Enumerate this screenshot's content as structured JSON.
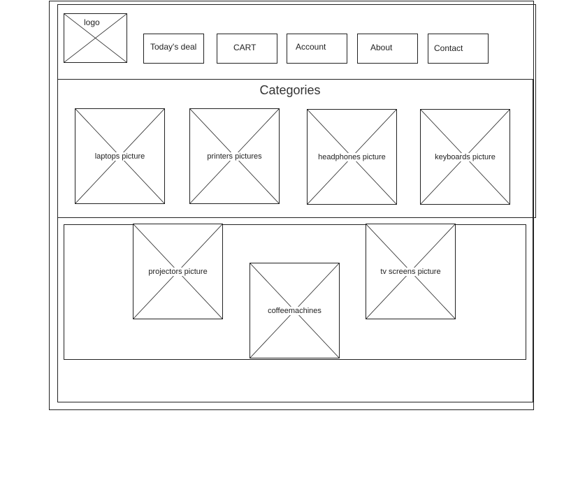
{
  "header": {
    "logo_label": "logo",
    "nav": [
      {
        "label": "Today's deal"
      },
      {
        "label": "CART"
      },
      {
        "label": "Account"
      },
      {
        "label": "About"
      },
      {
        "label": "Contact"
      }
    ]
  },
  "categories": {
    "title": "Categories",
    "items": [
      {
        "label": "laptops picture"
      },
      {
        "label": "printers pictures"
      },
      {
        "label": "headphones picture"
      },
      {
        "label": "keyboards picture"
      }
    ]
  },
  "featured": {
    "items": [
      {
        "label": "projectors picture"
      },
      {
        "label": "coffeemachines"
      },
      {
        "label": "tv screens picture"
      }
    ]
  }
}
